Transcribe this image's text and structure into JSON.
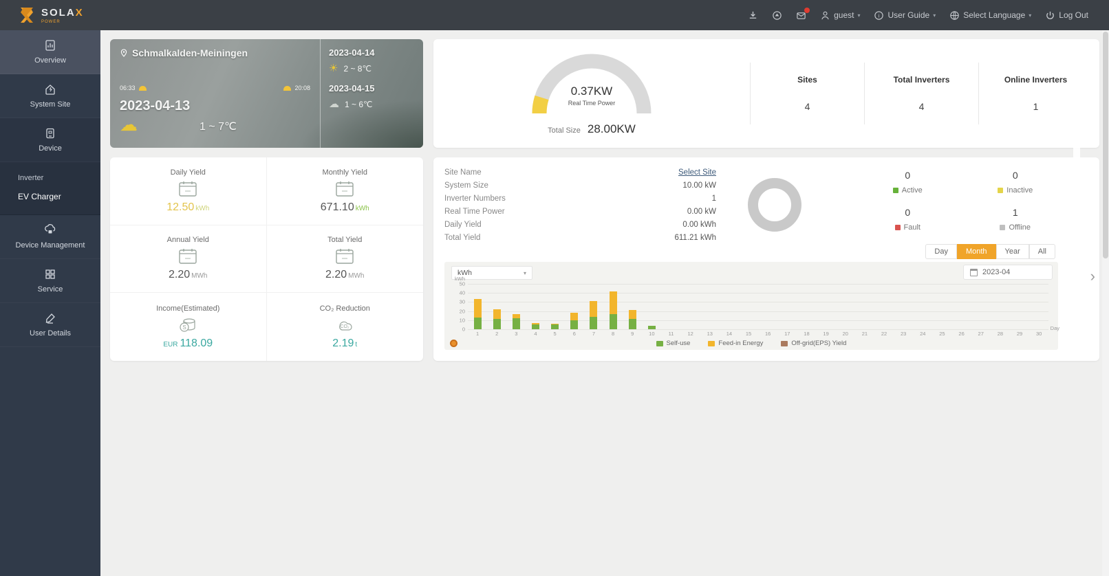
{
  "topbar": {
    "brand": "SOLA",
    "brand_x": "X",
    "brand_sub": "POWER",
    "user": "guest",
    "user_guide": "User Guide",
    "select_language": "Select Language",
    "logout": "Log Out",
    "caret": "▾"
  },
  "sidebar": {
    "items": [
      {
        "label": "Overview",
        "icon": "overview-icon",
        "active": true
      },
      {
        "label": "System Site",
        "icon": "site-icon"
      },
      {
        "label": "Device",
        "icon": "device-icon",
        "dark": true
      }
    ],
    "sub_items": [
      {
        "label": "Inverter"
      },
      {
        "label": "EV Charger",
        "sel": true
      }
    ],
    "items2": [
      {
        "label": "Device Management",
        "icon": "device-management-icon"
      },
      {
        "label": "Service",
        "icon": "service-icon"
      },
      {
        "label": "User Details",
        "icon": "user-details-icon"
      }
    ]
  },
  "weather": {
    "location": "Schmalkalden-Meiningen",
    "sunrise": "06:33",
    "sunset": "20:08",
    "today_date": "2023-04-13",
    "today_temp": "1 ~ 7℃",
    "forecast": [
      {
        "date": "2023-04-14",
        "temp": "2 ~ 8℃",
        "icon": "sun"
      },
      {
        "date": "2023-04-15",
        "temp": "1 ~ 6℃",
        "icon": "rain"
      }
    ]
  },
  "gauge": {
    "power_value": "0.37KW",
    "power_label": "Real Time Power",
    "total_size_label": "Total Size",
    "total_size_value": "28.00KW",
    "accent_color": "#f2cf45",
    "track_color": "#d9d9d9",
    "stats": [
      {
        "label": "Sites",
        "value": "4"
      },
      {
        "label": "Total Inverters",
        "value": "4"
      },
      {
        "label": "Online Inverters",
        "value": "1"
      }
    ]
  },
  "yield": {
    "cells": [
      {
        "label": "Daily Yield",
        "value": "12.50",
        "unit": "kWh",
        "value_color": "#e3c44c",
        "unit_color": "#cfd47a",
        "icon": "calendar-icon"
      },
      {
        "label": "Monthly Yield",
        "value": "671.10",
        "unit": "kWh",
        "value_color": "#555555",
        "unit_color": "#8bc34a",
        "icon": "calendar-icon"
      },
      {
        "label": "Annual Yield",
        "value": "2.20",
        "unit": "MWh",
        "value_color": "#555555",
        "unit_color": "#999999",
        "icon": "calendar-icon"
      },
      {
        "label": "Total Yield",
        "value": "2.20",
        "unit": "MWh",
        "value_color": "#555555",
        "unit_color": "#999999",
        "icon": "calendar-icon"
      },
      {
        "label": "Income(Estimated)",
        "value": "118.09",
        "prefix": "EUR",
        "unit": "",
        "value_color": "#3aa8a0",
        "unit_color": "#3aa8a0",
        "icon": "income-icon"
      },
      {
        "label": "CO₂ Reduction",
        "value": "2.19",
        "unit": "t",
        "value_color": "#3aa8a0",
        "unit_color": "#3aa8a0",
        "icon": "co2-icon"
      }
    ]
  },
  "site": {
    "info_rows": [
      {
        "label": "Site Name",
        "value": "Select Site",
        "link": true
      },
      {
        "label": "System Size",
        "value": "10.00 kW"
      },
      {
        "label": "Inverter Numbers",
        "value": "1"
      },
      {
        "label": "Real Time Power",
        "value": "0.00 kW"
      },
      {
        "label": "Daily Yield",
        "value": "0.00 kWh"
      },
      {
        "label": "Total Yield",
        "value": "611.21 kWh"
      }
    ],
    "donut_color": "#c9c9c9",
    "statuses": [
      {
        "label": "Active",
        "value": "0",
        "color": "#67b23a"
      },
      {
        "label": "Inactive",
        "value": "0",
        "color": "#e4d44a"
      },
      {
        "label": "Fault",
        "value": "0",
        "color": "#d9534f"
      },
      {
        "label": "Offline",
        "value": "1",
        "color": "#bfbfbf"
      }
    ],
    "period_options": [
      "Day",
      "Month",
      "Year",
      "All"
    ],
    "period_selected": "Month",
    "date_value": "2023-04",
    "unit_select_value": "kWh",
    "next_arrow": "›"
  },
  "chart_data": {
    "type": "bar",
    "stacked": true,
    "unit": "kWh",
    "xlabel": "Day",
    "x": [
      "1",
      "2",
      "3",
      "4",
      "5",
      "6",
      "7",
      "8",
      "9",
      "10",
      "11",
      "12",
      "13",
      "14",
      "15",
      "16",
      "17",
      "18",
      "19",
      "20",
      "21",
      "22",
      "23",
      "24",
      "25",
      "26",
      "27",
      "28",
      "29",
      "30"
    ],
    "ylim": [
      0,
      50
    ],
    "yticks": [
      0,
      10,
      20,
      30,
      40,
      50
    ],
    "grid": true,
    "legend_position": "bottom",
    "series": [
      {
        "name": "Self-use",
        "color": "#76b043",
        "values": [
          13,
          11,
          12,
          5,
          5,
          10,
          14,
          17,
          11,
          4,
          0,
          0,
          0,
          0,
          0,
          0,
          0,
          0,
          0,
          0,
          0,
          0,
          0,
          0,
          0,
          0,
          0,
          0,
          0,
          0
        ]
      },
      {
        "name": "Feed-in Energy",
        "color": "#f2b52c",
        "values": [
          20,
          11,
          5,
          2,
          1,
          8,
          17,
          25,
          10,
          0,
          0,
          0,
          0,
          0,
          0,
          0,
          0,
          0,
          0,
          0,
          0,
          0,
          0,
          0,
          0,
          0,
          0,
          0,
          0,
          0
        ]
      },
      {
        "name": "Off-grid(EPS) Yield",
        "color": "#aa7a5e",
        "values": [
          0,
          0,
          0,
          0,
          0,
          0,
          0,
          0,
          0,
          0,
          0,
          0,
          0,
          0,
          0,
          0,
          0,
          0,
          0,
          0,
          0,
          0,
          0,
          0,
          0,
          0,
          0,
          0,
          0,
          0
        ]
      }
    ]
  }
}
